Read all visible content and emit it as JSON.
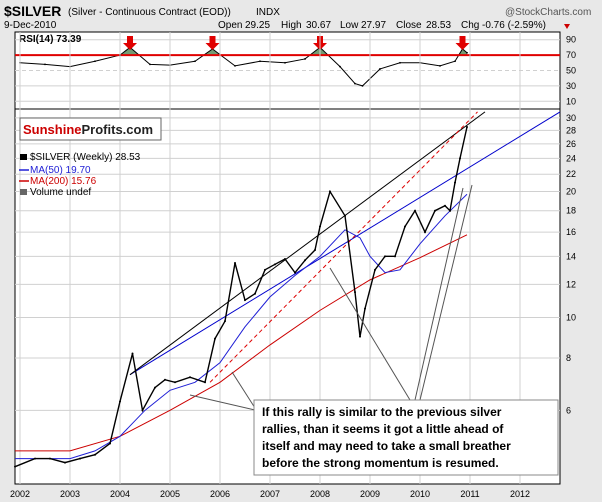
{
  "header": {
    "symbol": "$SILVER",
    "description": "(Silver - Continuous Contract (EOD))",
    "exchange": "INDX",
    "date": "9-Dec-2010",
    "open_label": "Open",
    "open": "29.25",
    "high_label": "High",
    "high": "30.67",
    "low_label": "Low",
    "low": "27.97",
    "close_label": "Close",
    "close": "28.53",
    "chg_label": "Chg",
    "chg": "-0.76 (-2.59%)",
    "watermark": "@StockCharts.com"
  },
  "logo": {
    "part1": "Sunshine",
    "part2": "Profits.com"
  },
  "legend": {
    "main": "$SILVER (Weekly) 28.53",
    "ma50": "MA(50) 19.70",
    "ma200": "MA(200) 15.76",
    "volume": "Volume undef"
  },
  "annotation": {
    "lines": [
      "If this rally is similar to the previous silver",
      "rallies, than it seems it got a little ahead of",
      "itself and may need to take a small breather",
      "before the strong momentum is resumed."
    ]
  },
  "colors": {
    "price": "#000000",
    "ma50": "#1f1fd6",
    "ma200": "#cc0000",
    "rsi": "#000000",
    "rsi_fill": "#5a8a5a",
    "arrow": "#e00000",
    "trend_blue": "#0000cc",
    "trend_black": "#000000",
    "trend_red_dashed": "#dd0000",
    "grid": "#d0d0d0"
  },
  "chart_data": {
    "type": "line",
    "rsi": {
      "label": "RSI(14)",
      "value": 73.39,
      "yticks": [
        10,
        30,
        50,
        70,
        90
      ],
      "overbought": 70,
      "x": [
        2002.0,
        2002.5,
        2003.0,
        2003.5,
        2004.0,
        2004.2,
        2004.6,
        2005.0,
        2005.5,
        2005.85,
        2006.3,
        2006.8,
        2007.3,
        2007.7,
        2008.0,
        2008.4,
        2008.7,
        2008.85,
        2009.2,
        2009.6,
        2010.0,
        2010.4,
        2010.7,
        2010.85,
        2010.94
      ],
      "values": [
        60,
        58,
        55,
        62,
        70,
        80,
        58,
        57,
        62,
        78,
        56,
        62,
        60,
        65,
        80,
        55,
        33,
        30,
        52,
        60,
        60,
        56,
        62,
        78,
        73
      ]
    },
    "price": {
      "name": "$SILVER (Weekly)",
      "x": [
        2001.9,
        2002.3,
        2002.6,
        2002.9,
        2003.2,
        2003.5,
        2003.8,
        2004.0,
        2004.25,
        2004.45,
        2004.7,
        2004.9,
        2005.1,
        2005.4,
        2005.7,
        2005.9,
        2006.1,
        2006.3,
        2006.5,
        2006.7,
        2006.9,
        2007.1,
        2007.3,
        2007.5,
        2007.7,
        2007.9,
        2008.0,
        2008.2,
        2008.5,
        2008.7,
        2008.8,
        2008.9,
        2009.1,
        2009.3,
        2009.5,
        2009.7,
        2009.9,
        2010.1,
        2010.3,
        2010.5,
        2010.6,
        2010.7,
        2010.8,
        2010.94
      ],
      "values": [
        4.4,
        4.6,
        4.6,
        4.5,
        4.6,
        4.7,
        5.0,
        6.3,
        8.2,
        6.0,
        6.8,
        7.1,
        7.0,
        7.2,
        7.0,
        8.9,
        9.8,
        13.5,
        11.0,
        11.4,
        13.0,
        13.4,
        13.8,
        12.8,
        13.7,
        14.5,
        16.5,
        20.0,
        17.5,
        11.5,
        9.0,
        10.5,
        13.0,
        14.0,
        14.0,
        16.5,
        18.0,
        16.0,
        18.0,
        18.5,
        18.0,
        21.0,
        24.0,
        28.53
      ]
    },
    "ma50": {
      "name": "MA(50)",
      "x": [
        2001.9,
        2003.0,
        2003.5,
        2004.0,
        2004.5,
        2005.0,
        2005.5,
        2006.0,
        2006.5,
        2007.0,
        2007.5,
        2008.0,
        2008.5,
        2008.8,
        2009.0,
        2009.3,
        2009.6,
        2010.0,
        2010.5,
        2010.94
      ],
      "values": [
        4.6,
        4.6,
        4.8,
        5.2,
        6.0,
        6.7,
        7.0,
        7.8,
        9.5,
        11.2,
        12.6,
        14.0,
        16.2,
        15.5,
        14.0,
        12.8,
        13.0,
        15.0,
        17.5,
        19.7
      ]
    },
    "ma200": {
      "name": "MA(200)",
      "x": [
        2001.9,
        2003.0,
        2004.0,
        2005.0,
        2006.0,
        2007.0,
        2008.0,
        2009.0,
        2010.0,
        2010.94
      ],
      "values": [
        4.8,
        4.8,
        5.2,
        6.0,
        7.0,
        8.6,
        10.4,
        12.3,
        13.9,
        15.76
      ]
    },
    "trendlines": {
      "blue": [
        [
          2004.2,
          7.3
        ],
        [
          2012.8,
          31.0
        ]
      ],
      "black": [
        [
          2004.2,
          7.3
        ],
        [
          2011.3,
          31.0
        ]
      ],
      "red_dashed": [
        [
          2005.8,
          7.0
        ],
        [
          2011.15,
          31.0
        ]
      ]
    },
    "xticks": [
      "2002",
      "2003",
      "2004",
      "2005",
      "2006",
      "2007",
      "2008",
      "2009",
      "2010",
      "2011",
      "2012"
    ],
    "yticks": [
      6,
      8,
      10,
      12,
      14,
      16,
      18,
      20,
      22,
      24,
      26,
      28,
      30
    ],
    "ylim": [
      4.0,
      31.5
    ],
    "yscale": "log"
  }
}
